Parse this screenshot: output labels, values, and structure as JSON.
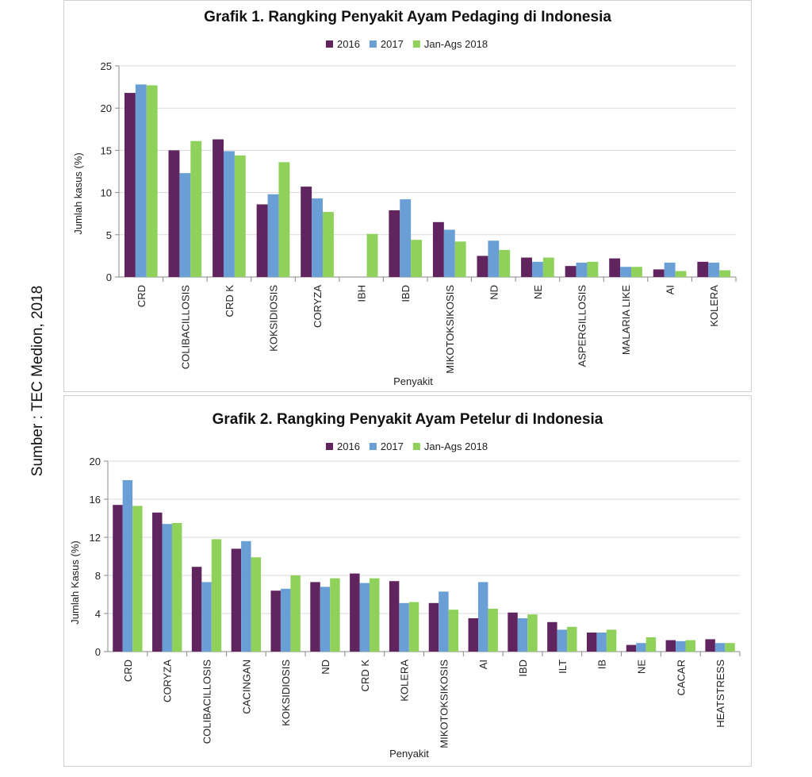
{
  "source_note": "Sumber : TEC Medion, 2018",
  "colors": {
    "2016": "#60245f",
    "2017": "#6a9fd6",
    "Jan-Ags 2018": "#8fd15b",
    "grid": "#d9d9d9",
    "axis": "#888888"
  },
  "chart_data": [
    {
      "type": "bar",
      "title": "Grafik 1. Rangking Penyakit Ayam Pedaging di Indonesia",
      "xlabel": "Penyakit",
      "ylabel": "Jumlah kasus (%)",
      "ylim": [
        0,
        25
      ],
      "yticks": [
        "0",
        "5",
        "10",
        "15",
        "20",
        "25"
      ],
      "grid": true,
      "legend_position": "top-center",
      "categories": [
        "CRD",
        "COLIBACILLOSIS",
        "CRD K",
        "KOKSIDIOSIS",
        "CORYZA",
        "IBH",
        "IBD",
        "MIKOTOKSIKOSIS",
        "ND",
        "NE",
        "ASPERGILLOSIS",
        "MALARIA LIKE",
        "AI",
        "KOLERA"
      ],
      "series": [
        {
          "name": "2016",
          "values": [
            21.8,
            15.0,
            16.3,
            8.6,
            10.7,
            0,
            7.9,
            6.5,
            2.5,
            2.3,
            1.3,
            2.2,
            0.9,
            1.8
          ]
        },
        {
          "name": "2017",
          "values": [
            22.8,
            12.3,
            14.9,
            9.8,
            9.3,
            0,
            9.2,
            5.6,
            4.3,
            1.8,
            1.7,
            1.2,
            1.7,
            1.7
          ]
        },
        {
          "name": "Jan-Ags 2018",
          "values": [
            22.7,
            16.1,
            14.4,
            13.6,
            7.7,
            5.1,
            4.4,
            4.2,
            3.2,
            2.3,
            1.8,
            1.2,
            0.7,
            0.8
          ]
        }
      ]
    },
    {
      "type": "bar",
      "title": "Grafik 2. Rangking Penyakit Ayam Petelur di Indonesia",
      "xlabel": "Penyakit",
      "ylabel": "Jumlah Kasus (%)",
      "ylim": [
        0,
        20
      ],
      "yticks": [
        "0",
        "4",
        "8",
        "12",
        "16",
        "20"
      ],
      "grid": true,
      "legend_position": "top-center",
      "categories": [
        "CRD",
        "CORYZA",
        "COLIBACILLOSIS",
        "CACINGAN",
        "KOKSIDIOSIS",
        "ND",
        "CRD K",
        "KOLERA",
        "MIKOTOKSIKOSIS",
        "AI",
        "IBD",
        "ILT",
        "IB",
        "NE",
        "CACAR",
        "HEATSTRESS"
      ],
      "series": [
        {
          "name": "2016",
          "values": [
            15.4,
            14.6,
            8.9,
            10.8,
            6.4,
            7.3,
            8.2,
            7.4,
            5.1,
            3.5,
            4.1,
            3.1,
            2.0,
            0.7,
            1.2,
            1.3
          ]
        },
        {
          "name": "2017",
          "values": [
            18.0,
            13.4,
            7.3,
            11.6,
            6.6,
            6.8,
            7.2,
            5.1,
            6.3,
            7.3,
            3.5,
            2.3,
            2.0,
            0.9,
            1.1,
            0.9
          ]
        },
        {
          "name": "Jan-Ags 2018",
          "values": [
            15.3,
            13.5,
            11.8,
            9.9,
            8.0,
            7.7,
            7.7,
            5.2,
            4.4,
            4.5,
            3.9,
            2.6,
            2.3,
            1.5,
            1.2,
            0.9
          ]
        }
      ]
    }
  ]
}
